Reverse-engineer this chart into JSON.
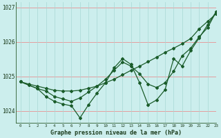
{
  "title": "Graphe pression niveau de la mer (hPa)",
  "bg_color": "#cceeed",
  "line_color": "#1a5c2a",
  "grid_color_h": "#e89090",
  "grid_color_v": "#a8d8d4",
  "xlim": [
    -0.5,
    23
  ],
  "ylim": [
    1023.65,
    1027.15
  ],
  "yticks": [
    1024,
    1025,
    1026,
    1027
  ],
  "xticks": [
    0,
    1,
    2,
    3,
    4,
    5,
    6,
    7,
    8,
    9,
    10,
    11,
    12,
    13,
    14,
    15,
    16,
    17,
    18,
    19,
    20,
    21,
    22,
    23
  ],
  "series1_x": [
    0,
    1,
    2,
    3,
    4,
    5,
    6,
    7,
    8,
    9,
    10,
    11,
    12,
    13,
    14,
    15,
    16,
    17,
    18,
    19,
    20,
    21,
    22,
    23
  ],
  "series1_y": [
    1024.85,
    1024.78,
    1024.72,
    1024.66,
    1024.6,
    1024.58,
    1024.58,
    1024.6,
    1024.66,
    1024.72,
    1024.82,
    1024.92,
    1025.05,
    1025.18,
    1025.3,
    1025.43,
    1025.56,
    1025.7,
    1025.82,
    1025.95,
    1026.1,
    1026.38,
    1026.6,
    1026.82
  ],
  "series2_x": [
    0,
    1,
    2,
    3,
    4,
    5,
    6,
    7,
    8,
    9,
    10,
    11,
    12,
    13,
    14,
    15,
    16,
    17,
    18,
    19,
    20,
    21,
    22,
    23
  ],
  "series2_y": [
    1024.85,
    1024.75,
    1024.65,
    1024.58,
    1024.42,
    1024.35,
    1024.28,
    1024.38,
    1024.55,
    1024.72,
    1024.92,
    1025.18,
    1025.42,
    1025.3,
    1025.08,
    1024.78,
    1024.68,
    1024.82,
    1025.15,
    1025.6,
    1025.82,
    1026.15,
    1026.42,
    1026.88
  ],
  "series3_x": [
    0,
    1,
    2,
    3,
    4,
    5,
    6,
    7,
    8,
    9,
    10,
    11,
    12,
    13,
    14,
    15,
    16,
    17,
    18,
    19,
    20,
    21,
    22,
    23
  ],
  "series3_y": [
    1024.85,
    1024.75,
    1024.65,
    1024.42,
    1024.28,
    1024.2,
    1024.15,
    1023.8,
    1024.18,
    1024.52,
    1024.82,
    1025.25,
    1025.52,
    1025.35,
    1024.82,
    1024.18,
    1024.32,
    1024.62,
    1025.52,
    1025.3,
    1025.75,
    1026.12,
    1026.5,
    1026.88
  ]
}
